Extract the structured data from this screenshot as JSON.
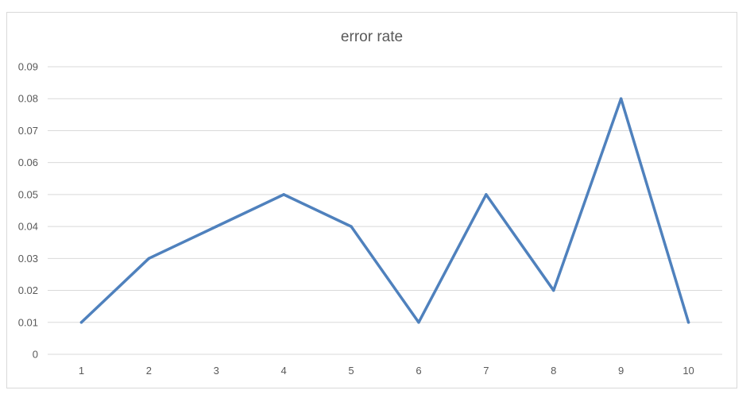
{
  "chart_data": {
    "type": "line",
    "title": "error rate",
    "xlabel": "",
    "ylabel": "",
    "categories": [
      "1",
      "2",
      "3",
      "4",
      "5",
      "6",
      "7",
      "8",
      "9",
      "10"
    ],
    "series": [
      {
        "values": [
          0.01,
          0.03,
          0.04,
          0.05,
          0.04,
          0.01,
          0.05,
          0.02,
          0.08,
          0.01
        ],
        "color": "#4f81bd"
      }
    ],
    "yticks": [
      "0",
      "0.01",
      "0.02",
      "0.03",
      "0.04",
      "0.05",
      "0.06",
      "0.07",
      "0.08",
      "0.09"
    ],
    "ylim": [
      0,
      0.09
    ],
    "grid": true,
    "legend": "none"
  }
}
